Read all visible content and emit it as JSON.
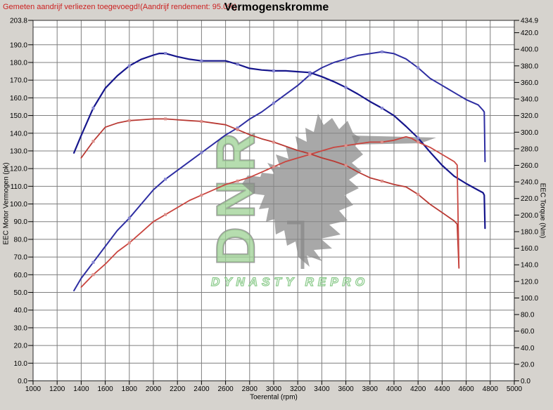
{
  "header": {
    "note": "Gemeten aandrijf verliezen toegevoegd!(Aandrijf rendement: 95.0%)",
    "title": "Vermogenskromme"
  },
  "watermark": {
    "vertical_text": "DNR",
    "bottom_text": "DYNASTY REPRO",
    "letter_fill": "#9ed294",
    "letter_stroke": "#8a8a8a",
    "wolf_gray": "#878787",
    "bottom_text_stroke": "#6fbf6f"
  },
  "colors": {
    "background": "#d6d3ce",
    "plot_background": "#ffffff",
    "gridline": "#7f7f7f",
    "plot_border": "#2a2a2a",
    "tick_text": "#000000",
    "note_red": "#cc2222"
  },
  "chart_data": {
    "type": "line",
    "title": "Vermogenskromme",
    "grid": true,
    "legend": "none",
    "x_axis": {
      "label": "Toerental (rpm)",
      "min": 1000,
      "max": 5000,
      "tick_labels": [
        1000,
        1200,
        1400,
        1600,
        1800,
        2000,
        2200,
        2400,
        2600,
        2800,
        3000,
        3200,
        3400,
        3600,
        3800,
        4000,
        4200,
        4400,
        4600,
        4800,
        5000
      ]
    },
    "y_left_axis": {
      "label": "EEC Motor Vermogen (pk)",
      "min": 0,
      "max": 203.8,
      "tick_labels": [
        203.8,
        190,
        180,
        170,
        160,
        150,
        140,
        130,
        120,
        110,
        100,
        90,
        80,
        70,
        60,
        50,
        40,
        30,
        20,
        10,
        0
      ],
      "gridline_step": 10
    },
    "y_right_axis": {
      "label": "EEC Torque (Nm)",
      "min": 0,
      "max": 434.9,
      "tick_labels": [
        434.9,
        420,
        400,
        380,
        360,
        340,
        320,
        300,
        280,
        260,
        240,
        220,
        200,
        180,
        160,
        140,
        120,
        100,
        80,
        60,
        40,
        20,
        0
      ]
    },
    "series": [
      {
        "name": "torque-run-blue",
        "axis": "right",
        "unit": "Nm",
        "color": "#16168c",
        "marker_color": "#8686d2",
        "width": 2.2,
        "peak": {
          "rpm": 2050,
          "value": 395
        },
        "points": [
          [
            1340,
            275
          ],
          [
            1400,
            296
          ],
          [
            1500,
            329
          ],
          [
            1600,
            353
          ],
          [
            1700,
            368
          ],
          [
            1800,
            380
          ],
          [
            1900,
            388
          ],
          [
            2000,
            393
          ],
          [
            2050,
            395
          ],
          [
            2100,
            395
          ],
          [
            2200,
            391
          ],
          [
            2300,
            388
          ],
          [
            2400,
            386
          ],
          [
            2500,
            386
          ],
          [
            2600,
            386
          ],
          [
            2700,
            382
          ],
          [
            2800,
            377
          ],
          [
            2900,
            375
          ],
          [
            3000,
            374
          ],
          [
            3100,
            374
          ],
          [
            3200,
            373
          ],
          [
            3300,
            372
          ],
          [
            3400,
            367
          ],
          [
            3500,
            361
          ],
          [
            3600,
            354
          ],
          [
            3700,
            346
          ],
          [
            3800,
            337
          ],
          [
            3900,
            329
          ],
          [
            4000,
            320
          ],
          [
            4100,
            307
          ],
          [
            4200,
            293
          ],
          [
            4300,
            276
          ],
          [
            4400,
            260
          ],
          [
            4500,
            247
          ],
          [
            4600,
            238
          ],
          [
            4700,
            230
          ],
          [
            4740,
            227
          ],
          [
            4750,
            224
          ],
          [
            4757,
            184
          ]
        ]
      },
      {
        "name": "vermogen-run-blue",
        "axis": "left",
        "unit": "pk",
        "color": "#2e2ea2",
        "marker_color": "#8686d2",
        "width": 2,
        "peak": {
          "rpm": 3900,
          "value": 186
        },
        "points": [
          [
            1340,
            51
          ],
          [
            1400,
            58
          ],
          [
            1500,
            67
          ],
          [
            1600,
            76
          ],
          [
            1700,
            85
          ],
          [
            1800,
            92
          ],
          [
            1900,
            100
          ],
          [
            2000,
            108
          ],
          [
            2100,
            114
          ],
          [
            2200,
            119
          ],
          [
            2300,
            124
          ],
          [
            2400,
            129
          ],
          [
            2500,
            134
          ],
          [
            2600,
            139
          ],
          [
            2700,
            143
          ],
          [
            2800,
            148
          ],
          [
            2900,
            152
          ],
          [
            3000,
            157
          ],
          [
            3100,
            162
          ],
          [
            3200,
            167
          ],
          [
            3300,
            173
          ],
          [
            3400,
            177
          ],
          [
            3500,
            180
          ],
          [
            3600,
            182
          ],
          [
            3700,
            184
          ],
          [
            3800,
            185
          ],
          [
            3900,
            186
          ],
          [
            4000,
            185
          ],
          [
            4100,
            182
          ],
          [
            4200,
            177
          ],
          [
            4300,
            171
          ],
          [
            4400,
            167
          ],
          [
            4500,
            163
          ],
          [
            4600,
            159
          ],
          [
            4700,
            156
          ],
          [
            4740,
            153
          ],
          [
            4750,
            152
          ],
          [
            4757,
            124
          ]
        ]
      },
      {
        "name": "torque-run-red",
        "axis": "right",
        "unit": "Nm",
        "color": "#b93a34",
        "marker_color": "#dc8f8a",
        "width": 1.8,
        "peak": {
          "rpm": 2050,
          "value": 316
        },
        "points": [
          [
            1400,
            269
          ],
          [
            1500,
            289
          ],
          [
            1600,
            306
          ],
          [
            1700,
            311
          ],
          [
            1800,
            314
          ],
          [
            1900,
            315
          ],
          [
            2000,
            316
          ],
          [
            2100,
            316
          ],
          [
            2200,
            315
          ],
          [
            2300,
            314
          ],
          [
            2400,
            313
          ],
          [
            2500,
            311
          ],
          [
            2600,
            309
          ],
          [
            2700,
            303
          ],
          [
            2800,
            297
          ],
          [
            2900,
            292
          ],
          [
            3000,
            288
          ],
          [
            3100,
            283
          ],
          [
            3200,
            278
          ],
          [
            3300,
            274
          ],
          [
            3400,
            269
          ],
          [
            3500,
            265
          ],
          [
            3600,
            260
          ],
          [
            3700,
            252
          ],
          [
            3800,
            245
          ],
          [
            3900,
            241
          ],
          [
            4000,
            237
          ],
          [
            4100,
            234
          ],
          [
            4200,
            225
          ],
          [
            4300,
            213
          ],
          [
            4400,
            203
          ],
          [
            4500,
            193
          ],
          [
            4525,
            189
          ],
          [
            4540,
            136
          ]
        ]
      },
      {
        "name": "vermogen-run-red",
        "axis": "left",
        "unit": "pk",
        "color": "#c9453f",
        "marker_color": "#dc8f8a",
        "width": 1.8,
        "peak": {
          "rpm": 4100,
          "value": 138
        },
        "points": [
          [
            1400,
            53
          ],
          [
            1500,
            60
          ],
          [
            1600,
            66
          ],
          [
            1700,
            73
          ],
          [
            1800,
            78
          ],
          [
            1900,
            84
          ],
          [
            2000,
            90
          ],
          [
            2100,
            94
          ],
          [
            2200,
            98
          ],
          [
            2300,
            102
          ],
          [
            2400,
            105
          ],
          [
            2500,
            108
          ],
          [
            2600,
            111
          ],
          [
            2700,
            113
          ],
          [
            2800,
            115
          ],
          [
            2900,
            118
          ],
          [
            3000,
            121
          ],
          [
            3100,
            124
          ],
          [
            3200,
            126
          ],
          [
            3300,
            128
          ],
          [
            3400,
            130
          ],
          [
            3500,
            132
          ],
          [
            3600,
            133
          ],
          [
            3700,
            134
          ],
          [
            3800,
            135
          ],
          [
            3900,
            135
          ],
          [
            4000,
            136
          ],
          [
            4100,
            138
          ],
          [
            4150,
            137
          ],
          [
            4200,
            135
          ],
          [
            4300,
            132
          ],
          [
            4400,
            128
          ],
          [
            4500,
            124
          ],
          [
            4525,
            122
          ],
          [
            4540,
            64
          ]
        ]
      }
    ]
  }
}
